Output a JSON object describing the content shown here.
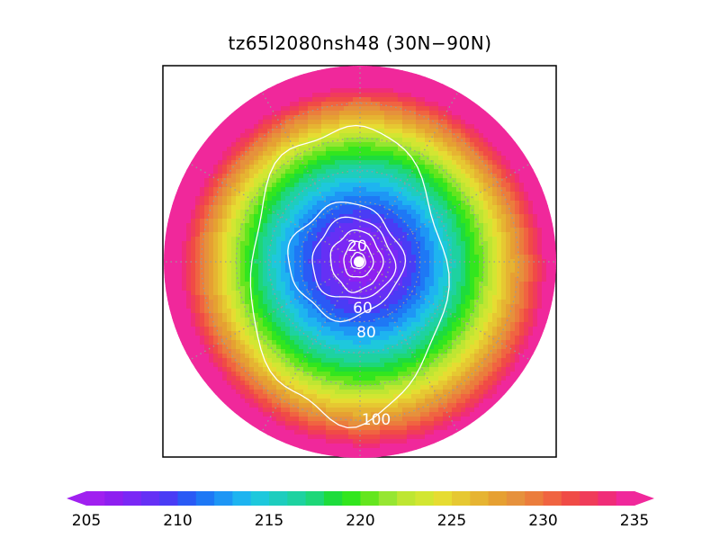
{
  "title": "tz65l2080nsh48 (30N−90N)",
  "chart_data": {
    "type": "heatmap",
    "projection": "polar-stereographic",
    "region": "north-polar",
    "field_range": [
      205,
      235
    ],
    "colorbar": {
      "min": 205,
      "max": 235,
      "step": 1,
      "tick_values": [
        "205",
        "210",
        "215",
        "220",
        "225",
        "230",
        "235"
      ],
      "extend": "both",
      "colors": [
        "#a020f0",
        "#8e1ff0",
        "#7a28f5",
        "#6530f5",
        "#4a3cf5",
        "#2a5af5",
        "#1e78f5",
        "#1e96f5",
        "#1eb4f0",
        "#1ec8dc",
        "#1ecdbe",
        "#1ed2a0",
        "#1ed778",
        "#1edc3c",
        "#32e61e",
        "#64e61e",
        "#96e632",
        "#bee632",
        "#d2e632",
        "#e6dc32",
        "#e6c832",
        "#e6b432",
        "#e6a032",
        "#e6913c",
        "#eb7d3c",
        "#f06441",
        "#f04b46",
        "#f03c5a",
        "#f02d78",
        "#f0289b"
      ]
    },
    "overlay_contours": [
      {
        "level": "20",
        "label": "20"
      },
      {
        "level": "40",
        "label": ""
      },
      {
        "level": "60",
        "label": "60"
      },
      {
        "level": "80",
        "label": "80"
      },
      {
        "level": "100",
        "label": "100"
      }
    ],
    "latitude_circles": [
      40,
      50,
      60,
      70,
      80
    ],
    "meridian_spacing_deg": 30,
    "grid": true
  }
}
